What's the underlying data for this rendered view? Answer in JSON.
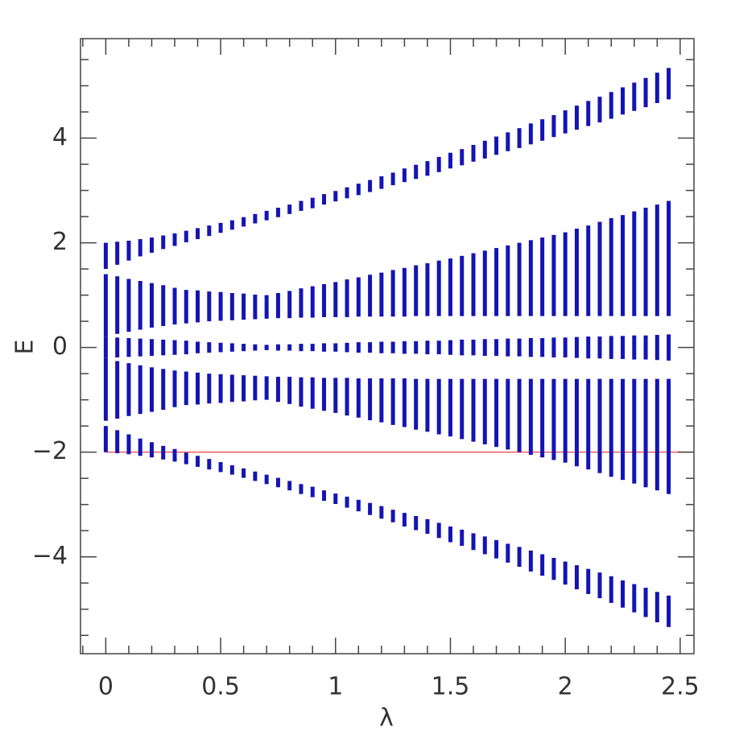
{
  "chart_data": {
    "type": "band-columns",
    "xlabel": "λ",
    "ylabel": "E",
    "xlim": [
      -0.11,
      2.56
    ],
    "ylim": [
      -5.85,
      5.9
    ],
    "xticks": [
      0,
      0.5,
      1,
      1.5,
      2,
      2.5
    ],
    "yticks": [
      {
        "value": -4,
        "label": "−4"
      },
      {
        "value": -2,
        "label": "−2"
      },
      0,
      2,
      4
    ],
    "xminorticks": [
      -0.1,
      0.1,
      0.2,
      0.3,
      0.4,
      0.6,
      0.7,
      0.8,
      0.9,
      1.1,
      1.2,
      1.3,
      1.4,
      1.6,
      1.7,
      1.8,
      1.9,
      2.1,
      2.2,
      2.3,
      2.4
    ],
    "yminorticks": [
      -5.5,
      -5,
      -4.5,
      -3.5,
      -3,
      -2.5,
      -1.5,
      -1,
      -0.5,
      0.5,
      1,
      1.5,
      2.5,
      3,
      3.5,
      4.5,
      5,
      5.5
    ],
    "reference_line": -2,
    "reference_color": "#f05a5a",
    "x": [
      0,
      0.05,
      0.1,
      0.15,
      0.2,
      0.25,
      0.3,
      0.35,
      0.4,
      0.45,
      0.5,
      0.55,
      0.6,
      0.65,
      0.7,
      0.75,
      0.8,
      0.85,
      0.9,
      0.95,
      1,
      1.05,
      1.1,
      1.15,
      1.2,
      1.25,
      1.3,
      1.35,
      1.4,
      1.45,
      1.5,
      1.55,
      1.6,
      1.65,
      1.7,
      1.75,
      1.8,
      1.85,
      1.9,
      1.95,
      2,
      2.05,
      2.1,
      2.15,
      2.2,
      2.25,
      2.3,
      2.35,
      2.4,
      2.45
    ],
    "series": [
      {
        "color": "#1414b4",
        "low": [
          1.5,
          1.58,
          1.66,
          1.74,
          1.81,
          1.88,
          1.94,
          2.01,
          2.07,
          2.13,
          2.19,
          2.25,
          2.31,
          2.37,
          2.43,
          2.49,
          2.55,
          2.61,
          2.66,
          2.73,
          2.79,
          2.85,
          2.91,
          2.97,
          3.03,
          3.1,
          3.16,
          3.22,
          3.28,
          3.35,
          3.42,
          3.48,
          3.55,
          3.61,
          3.68,
          3.75,
          3.81,
          3.88,
          3.95,
          4.02,
          4.09,
          4.16,
          4.23,
          4.3,
          4.37,
          4.45,
          4.52,
          4.59,
          4.67,
          4.74
        ],
        "high": [
          2.0,
          2.02,
          2.04,
          2.07,
          2.1,
          2.14,
          2.18,
          2.23,
          2.28,
          2.33,
          2.38,
          2.43,
          2.49,
          2.55,
          2.61,
          2.67,
          2.73,
          2.8,
          2.86,
          2.93,
          2.99,
          3.06,
          3.13,
          3.2,
          3.27,
          3.34,
          3.42,
          3.49,
          3.56,
          3.64,
          3.72,
          3.79,
          3.87,
          3.95,
          4.03,
          4.11,
          4.19,
          4.28,
          4.36,
          4.44,
          4.53,
          4.62,
          4.71,
          4.79,
          4.88,
          4.97,
          5.06,
          5.15,
          5.25,
          5.34
        ]
      },
      {
        "color": "#1414b4",
        "low": [
          0.2,
          0.26,
          0.3,
          0.34,
          0.38,
          0.41,
          0.44,
          0.46,
          0.48,
          0.5,
          0.51,
          0.52,
          0.53,
          0.54,
          0.55,
          0.56,
          0.56,
          0.57,
          0.57,
          0.58,
          0.58,
          0.58,
          0.59,
          0.59,
          0.59,
          0.59,
          0.59,
          0.6,
          0.6,
          0.6,
          0.6,
          0.6,
          0.6,
          0.6,
          0.6,
          0.6,
          0.6,
          0.6,
          0.6,
          0.6,
          0.6,
          0.6,
          0.6,
          0.6,
          0.6,
          0.6,
          0.6,
          0.6,
          0.6,
          0.6
        ],
        "high": [
          1.4,
          1.36,
          1.31,
          1.27,
          1.23,
          1.19,
          1.14,
          1.1,
          1.09,
          1.07,
          1.06,
          1.04,
          1.03,
          1.01,
          1.0,
          1.04,
          1.08,
          1.13,
          1.17,
          1.21,
          1.25,
          1.3,
          1.34,
          1.39,
          1.43,
          1.48,
          1.52,
          1.57,
          1.61,
          1.66,
          1.7,
          1.75,
          1.8,
          1.85,
          1.9,
          1.95,
          2.0,
          2.05,
          2.1,
          2.15,
          2.2,
          2.27,
          2.33,
          2.4,
          2.47,
          2.53,
          2.6,
          2.67,
          2.73,
          2.8
        ]
      },
      {
        "color": "#1414b4",
        "low": [
          -0.2,
          -0.19,
          -0.18,
          -0.17,
          -0.16,
          -0.15,
          -0.14,
          -0.13,
          -0.11,
          -0.1,
          -0.09,
          -0.08,
          -0.07,
          -0.06,
          -0.05,
          -0.06,
          -0.06,
          -0.07,
          -0.07,
          -0.08,
          -0.08,
          -0.09,
          -0.1,
          -0.1,
          -0.11,
          -0.11,
          -0.12,
          -0.12,
          -0.13,
          -0.13,
          -0.14,
          -0.15,
          -0.15,
          -0.16,
          -0.16,
          -0.17,
          -0.17,
          -0.18,
          -0.18,
          -0.19,
          -0.19,
          -0.2,
          -0.21,
          -0.21,
          -0.22,
          -0.22,
          -0.23,
          -0.23,
          -0.24,
          -0.25
        ],
        "high": [
          0.2,
          0.19,
          0.18,
          0.17,
          0.16,
          0.15,
          0.14,
          0.13,
          0.11,
          0.1,
          0.09,
          0.08,
          0.07,
          0.06,
          0.05,
          0.06,
          0.06,
          0.07,
          0.07,
          0.08,
          0.08,
          0.09,
          0.1,
          0.1,
          0.11,
          0.11,
          0.12,
          0.12,
          0.13,
          0.13,
          0.14,
          0.15,
          0.15,
          0.16,
          0.16,
          0.17,
          0.17,
          0.18,
          0.18,
          0.19,
          0.19,
          0.2,
          0.21,
          0.21,
          0.22,
          0.22,
          0.23,
          0.23,
          0.24,
          0.25
        ]
      },
      {
        "color": "#1414b4",
        "low": [
          -1.4,
          -1.36,
          -1.31,
          -1.27,
          -1.23,
          -1.19,
          -1.14,
          -1.1,
          -1.09,
          -1.07,
          -1.06,
          -1.04,
          -1.03,
          -1.01,
          -1.0,
          -1.04,
          -1.08,
          -1.13,
          -1.17,
          -1.21,
          -1.25,
          -1.3,
          -1.34,
          -1.39,
          -1.43,
          -1.48,
          -1.52,
          -1.57,
          -1.61,
          -1.66,
          -1.7,
          -1.75,
          -1.8,
          -1.85,
          -1.9,
          -1.95,
          -2.0,
          -2.05,
          -2.1,
          -2.15,
          -2.2,
          -2.27,
          -2.33,
          -2.4,
          -2.47,
          -2.53,
          -2.6,
          -2.67,
          -2.73,
          -2.8
        ],
        "high": [
          -0.2,
          -0.26,
          -0.3,
          -0.34,
          -0.38,
          -0.41,
          -0.44,
          -0.46,
          -0.48,
          -0.5,
          -0.51,
          -0.52,
          -0.53,
          -0.54,
          -0.55,
          -0.56,
          -0.56,
          -0.57,
          -0.57,
          -0.58,
          -0.58,
          -0.58,
          -0.59,
          -0.59,
          -0.59,
          -0.59,
          -0.59,
          -0.6,
          -0.6,
          -0.6,
          -0.6,
          -0.6,
          -0.6,
          -0.6,
          -0.6,
          -0.6,
          -0.6,
          -0.6,
          -0.6,
          -0.6,
          -0.6,
          -0.6,
          -0.6,
          -0.6,
          -0.6,
          -0.6,
          -0.6,
          -0.6,
          -0.6,
          -0.6
        ]
      },
      {
        "color": "#1414b4",
        "low": [
          -2.0,
          -2.02,
          -2.04,
          -2.07,
          -2.1,
          -2.14,
          -2.18,
          -2.23,
          -2.28,
          -2.33,
          -2.38,
          -2.43,
          -2.49,
          -2.55,
          -2.61,
          -2.67,
          -2.73,
          -2.8,
          -2.86,
          -2.93,
          -2.99,
          -3.06,
          -3.13,
          -3.2,
          -3.27,
          -3.34,
          -3.42,
          -3.49,
          -3.56,
          -3.64,
          -3.72,
          -3.79,
          -3.87,
          -3.95,
          -4.03,
          -4.11,
          -4.19,
          -4.28,
          -4.36,
          -4.44,
          -4.53,
          -4.62,
          -4.71,
          -4.79,
          -4.88,
          -4.97,
          -5.06,
          -5.15,
          -5.25,
          -5.34
        ],
        "high": [
          -1.5,
          -1.58,
          -1.66,
          -1.74,
          -1.81,
          -1.88,
          -1.94,
          -2.01,
          -2.07,
          -2.13,
          -2.19,
          -2.25,
          -2.31,
          -2.37,
          -2.43,
          -2.49,
          -2.55,
          -2.61,
          -2.66,
          -2.73,
          -2.79,
          -2.85,
          -2.91,
          -2.97,
          -3.03,
          -3.1,
          -3.16,
          -3.22,
          -3.28,
          -3.35,
          -3.42,
          -3.48,
          -3.55,
          -3.61,
          -3.68,
          -3.75,
          -3.81,
          -3.88,
          -3.95,
          -4.02,
          -4.09,
          -4.16,
          -4.23,
          -4.3,
          -4.37,
          -4.45,
          -4.52,
          -4.59,
          -4.67,
          -4.74
        ]
      }
    ]
  }
}
